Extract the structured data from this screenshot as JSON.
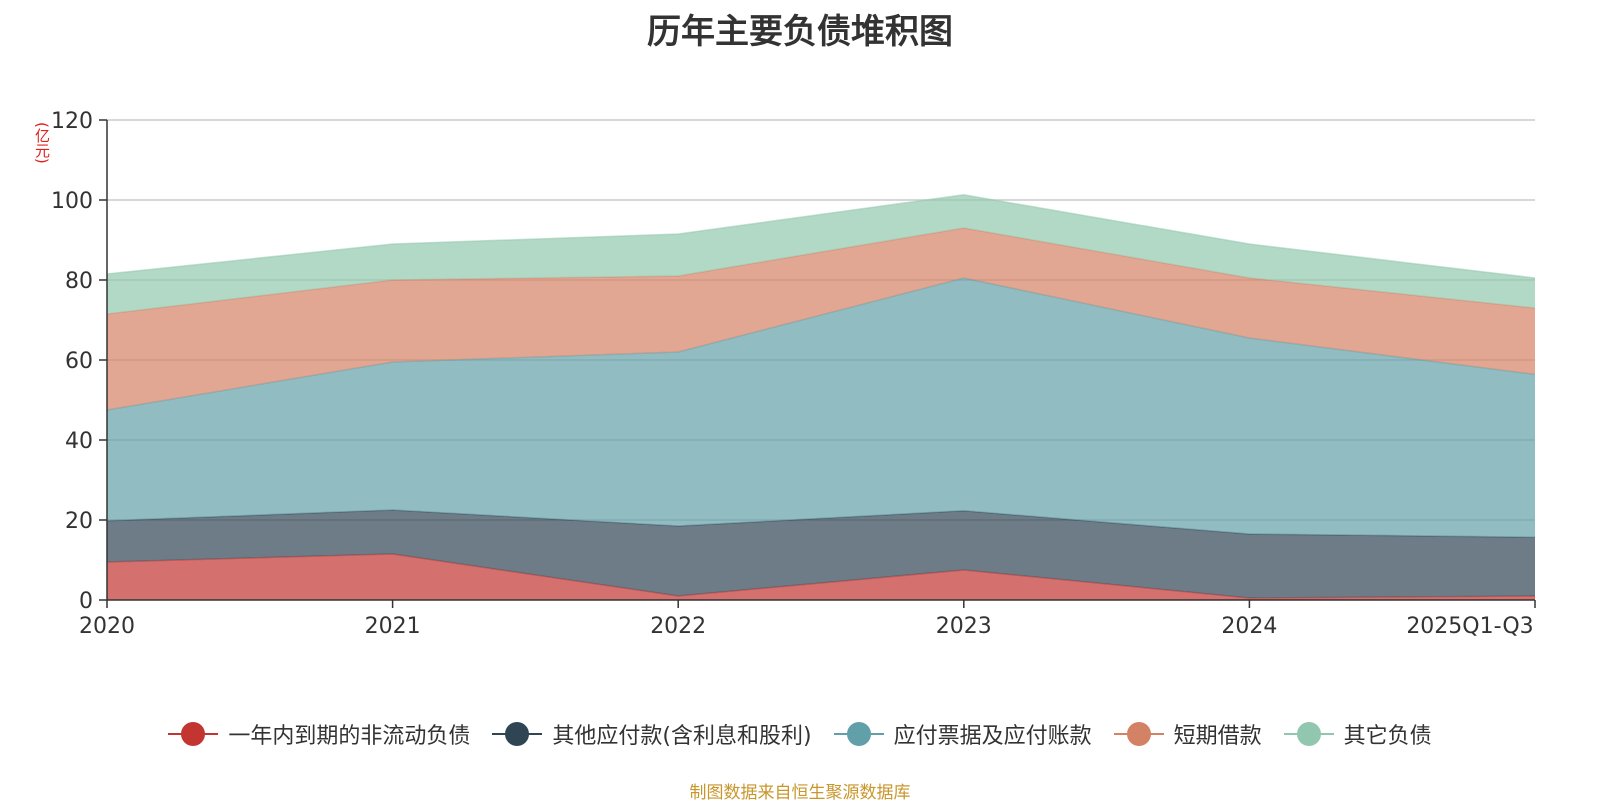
{
  "chart_data": {
    "type": "area",
    "stacked": true,
    "title": "历年主要负债堆积图",
    "unit": "(亿元)",
    "categories": [
      "2020",
      "2021",
      "2022",
      "2023",
      "2024",
      "2025Q1-Q3"
    ],
    "ylim": [
      0,
      120
    ],
    "yticks": [
      0,
      20,
      40,
      60,
      80,
      100,
      120
    ],
    "grid": true,
    "legend_position": "bottom",
    "series": [
      {
        "name": "一年内到期的非流动负债",
        "color": "#c23531",
        "values": [
          9.5,
          11.5,
          1.0,
          7.5,
          0.5,
          1.0
        ]
      },
      {
        "name": "其他应付款(含利息和股利)",
        "color": "#2f4554",
        "values": [
          10.3,
          11.0,
          17.5,
          14.8,
          16.0,
          14.7
        ]
      },
      {
        "name": "应付票据及应付账款",
        "color": "#61a0a8",
        "values": [
          27.7,
          37.0,
          43.5,
          58.2,
          49.0,
          40.7
        ]
      },
      {
        "name": "短期借款",
        "color": "#d48265",
        "values": [
          24.0,
          20.5,
          19.0,
          12.5,
          15.0,
          16.6
        ]
      },
      {
        "name": "其它负债",
        "color": "#91c7ae",
        "values": [
          10.0,
          9.0,
          10.5,
          8.3,
          8.5,
          7.5
        ]
      }
    ]
  },
  "footer": {
    "source": "制图数据来自恒生聚源数据库"
  }
}
